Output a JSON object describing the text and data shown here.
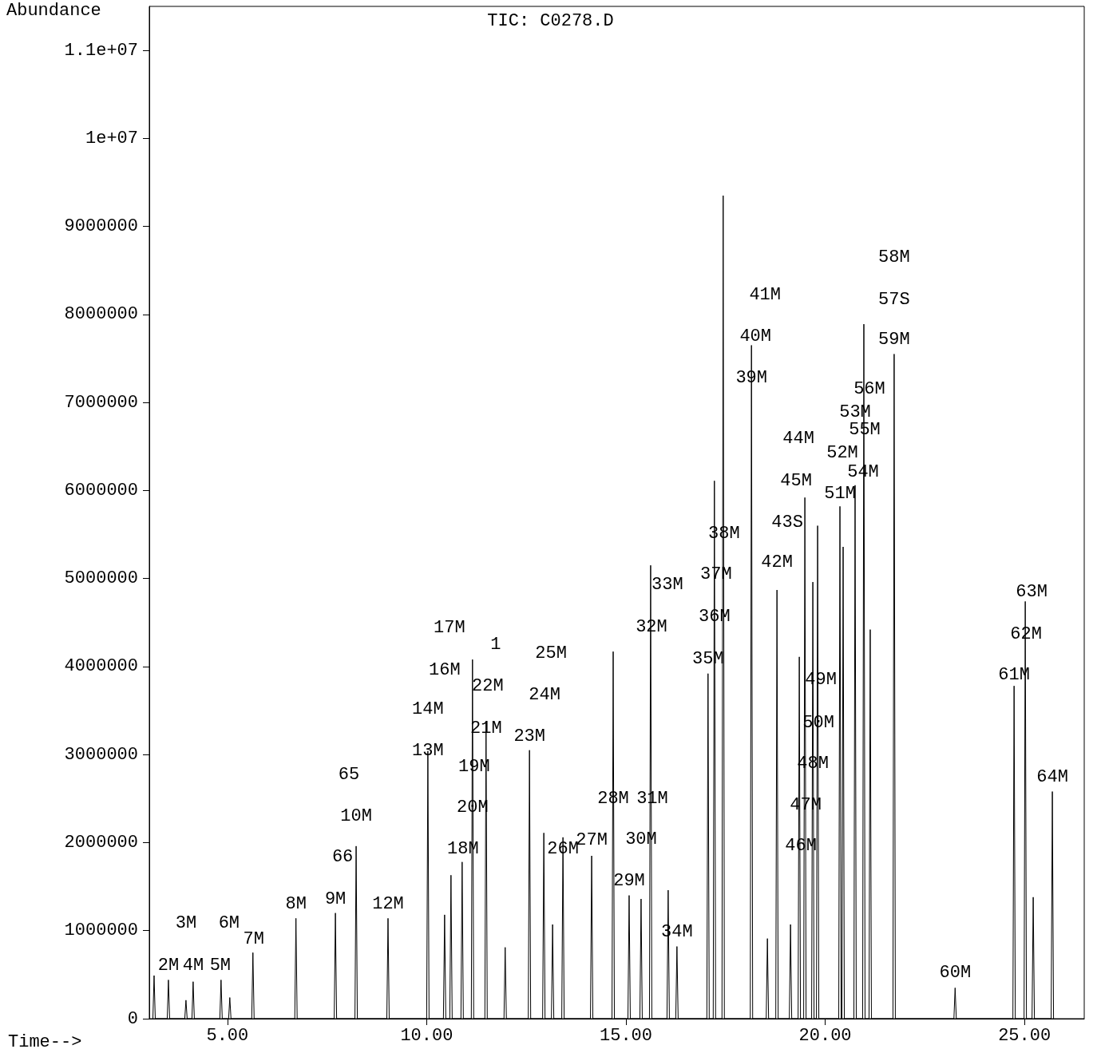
{
  "chart_data": {
    "type": "line",
    "title": "TIC: C0278.D",
    "xlabel": "Time-->",
    "ylabel": "Abundance",
    "xlim": [
      3.04,
      26.5
    ],
    "ylim": [
      0,
      11500000
    ],
    "xticks": [
      {
        "value": 5,
        "label": "5.00"
      },
      {
        "value": 10,
        "label": "10.00"
      },
      {
        "value": 15,
        "label": "15.00"
      },
      {
        "value": 20,
        "label": "20.00"
      },
      {
        "value": 25,
        "label": "25.00"
      }
    ],
    "yticks": [
      0,
      1000000,
      2000000,
      3000000,
      4000000,
      5000000,
      6000000,
      7000000,
      8000000,
      9000000,
      {
        "value": 10000000,
        "label": "1e+07"
      },
      {
        "value": 11000000,
        "label": "1.1e+07"
      }
    ],
    "grid": false,
    "marker": "none",
    "line_style": "solid",
    "series": [
      {
        "color": "#000000",
        "x": [
          3.13,
          3.16,
          3.19,
          3.49,
          3.52,
          3.55,
          3.93,
          3.96,
          3.99,
          4.11,
          4.14,
          4.17,
          4.81,
          4.84,
          4.87,
          5.03,
          5.06,
          5.09,
          5.61,
          5.64,
          5.67,
          6.69,
          6.72,
          6.75,
          7.68,
          7.71,
          7.74,
          8.2,
          8.23,
          8.26,
          9.0,
          9.03,
          9.06,
          10.0,
          10.03,
          10.06,
          10.42,
          10.45,
          10.48,
          10.58,
          10.61,
          10.64,
          10.86,
          10.89,
          10.92,
          11.12,
          11.15,
          11.18,
          11.46,
          11.49,
          11.52,
          11.94,
          11.97,
          12.0,
          12.55,
          12.58,
          12.61,
          12.91,
          12.94,
          12.97,
          13.13,
          13.16,
          13.19,
          13.39,
          13.42,
          13.45,
          14.11,
          14.14,
          14.17,
          14.65,
          14.68,
          14.71,
          15.05,
          15.08,
          15.11,
          15.35,
          15.38,
          15.41,
          15.59,
          15.62,
          15.65,
          16.03,
          16.06,
          16.09,
          16.25,
          16.28,
          16.31,
          17.03,
          17.06,
          17.09,
          17.19,
          17.22,
          17.25,
          17.41,
          17.44,
          17.47,
          18.12,
          18.15,
          18.18,
          18.52,
          18.55,
          18.58,
          18.76,
          18.79,
          18.82,
          19.1,
          19.13,
          19.16,
          19.32,
          19.35,
          19.38,
          19.46,
          19.49,
          19.52,
          19.66,
          19.69,
          19.72,
          19.78,
          19.81,
          19.84,
          20.34,
          20.37,
          20.4,
          20.42,
          20.45,
          20.48,
          20.72,
          20.75,
          20.78,
          20.94,
          20.97,
          21.0,
          21.1,
          21.13,
          21.16,
          21.7,
          21.73,
          21.76,
          23.23,
          23.26,
          23.29,
          24.71,
          24.74,
          24.77,
          24.99,
          25.02,
          25.05,
          25.19,
          25.22,
          25.25,
          25.67,
          25.7,
          25.73
        ],
        "values": [
          0,
          490000,
          0,
          0,
          440000,
          0,
          0,
          210000,
          0,
          0,
          420000,
          0,
          0,
          440000,
          0,
          0,
          240000,
          0,
          0,
          750000,
          0,
          0,
          1140000,
          0,
          0,
          1200000,
          0,
          0,
          1960000,
          0,
          0,
          1140000,
          0,
          0,
          3040000,
          0,
          0,
          1180000,
          0,
          0,
          1630000,
          0,
          0,
          1780000,
          0,
          0,
          4080000,
          0,
          0,
          3380000,
          0,
          0,
          810000,
          0,
          0,
          3050000,
          0,
          0,
          2110000,
          0,
          0,
          1070000,
          0,
          0,
          2060000,
          0,
          0,
          1850000,
          0,
          0,
          4170000,
          0,
          0,
          1400000,
          0,
          0,
          1360000,
          0,
          0,
          5150000,
          0,
          0,
          1460000,
          0,
          0,
          820000,
          0,
          0,
          3920000,
          0,
          0,
          6110000,
          0,
          0,
          9350000,
          0,
          0,
          7650000,
          0,
          0,
          910000,
          0,
          0,
          4870000,
          0,
          0,
          1070000,
          0,
          0,
          4110000,
          0,
          0,
          5920000,
          0,
          0,
          4960000,
          0,
          0,
          5600000,
          0,
          0,
          5820000,
          0,
          0,
          5360000,
          0,
          0,
          6060000,
          0,
          0,
          7890000,
          0,
          0,
          4420000,
          0,
          0,
          7550000,
          0,
          0,
          350000,
          0,
          0,
          3780000,
          0,
          0,
          4740000,
          0,
          0,
          1380000,
          0,
          0,
          2580000,
          0
        ]
      }
    ],
    "annotations": [
      "2M",
      "3M",
      "4M",
      "5M",
      "6M",
      "7M",
      "8M",
      "9M",
      "65",
      "10M",
      "66",
      "12M",
      "13M",
      "14M",
      "16M",
      "17M",
      "18M",
      "19M",
      "20M",
      "21M",
      "22M",
      "1",
      "23M",
      "24M",
      "25M",
      "26M",
      "27M",
      "28M",
      "31M",
      "29M",
      "30M",
      "32M",
      "33M",
      "34M",
      "35M",
      "36M",
      "37M",
      "38M",
      "39M",
      "40M",
      "41M",
      "42M",
      "43S",
      "44M",
      "45M",
      "46M",
      "47M",
      "48M",
      "49M",
      "50M",
      "51M",
      "52M",
      "53M",
      "54M",
      "55M",
      "56M",
      "57S",
      "58M",
      "59M",
      "60M",
      "61M",
      "62M",
      "63M",
      "64M"
    ]
  }
}
